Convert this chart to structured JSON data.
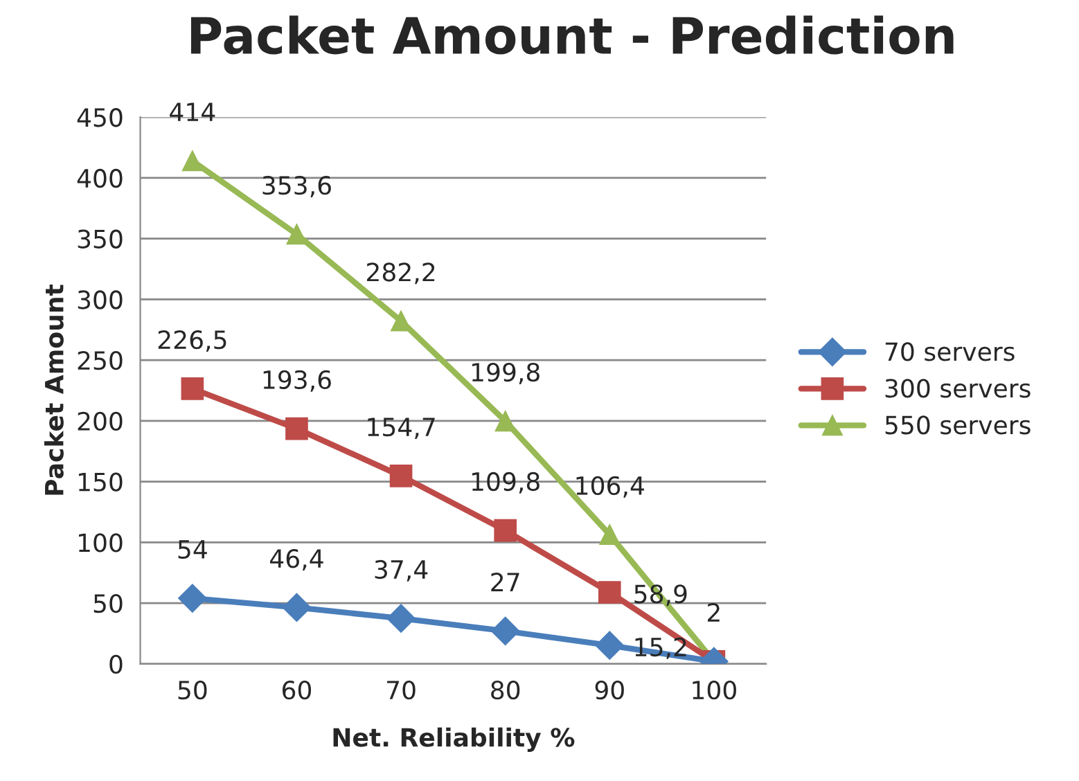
{
  "chart_data": {
    "type": "line",
    "title": "Packet Amount - Prediction",
    "xlabel": "Net. Reliability %",
    "ylabel": "Packet Amount",
    "categories": [
      "50",
      "60",
      "70",
      "80",
      "90",
      "100"
    ],
    "series": [
      {
        "name": "70 servers",
        "color": "#4a7ebb",
        "marker": "diamond",
        "values": [
          54,
          46.4,
          37.4,
          27,
          15.2,
          2
        ],
        "value_labels": [
          "54",
          "46,4",
          "37,4",
          "27",
          "15,2",
          null
        ]
      },
      {
        "name": "300 servers",
        "color": "#be4b48",
        "marker": "square",
        "values": [
          226.5,
          193.6,
          154.7,
          109.8,
          58.9,
          2
        ],
        "value_labels": [
          "226,5",
          "193,6",
          "154,7",
          "109,8",
          "58,9",
          "2"
        ]
      },
      {
        "name": "550 servers",
        "color": "#98b954",
        "marker": "triangle",
        "values": [
          414,
          353.6,
          282.2,
          199.8,
          106.4,
          2
        ],
        "value_labels": [
          "414",
          "353,6",
          "282,2",
          "199,8",
          "106,4",
          null
        ]
      }
    ],
    "ylim": [
      0,
      450
    ],
    "yticks": [
      0,
      50,
      100,
      150,
      200,
      250,
      300,
      350,
      400,
      450
    ],
    "grid": "y",
    "legend": "right",
    "line_style": "solid"
  }
}
